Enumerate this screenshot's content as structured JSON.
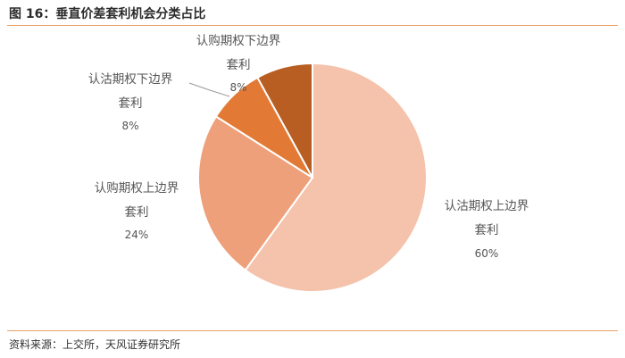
{
  "figure": {
    "title": "图 16：垂直价差套利机会分类占比",
    "source": "资料来源：上交所，天风证券研究所"
  },
  "chart_data": {
    "type": "pie",
    "start_angle_deg": 0,
    "direction": "clockwise",
    "slices": [
      {
        "label_lines": [
          "认沽期权上边界",
          "套利"
        ],
        "percent_label": "60%",
        "value": 60,
        "color": "#f5c2ab"
      },
      {
        "label_lines": [
          "认购期权上边界",
          "套利"
        ],
        "percent_label": "24%",
        "value": 24,
        "color": "#eda07a"
      },
      {
        "label_lines": [
          "认沽期权下边界",
          "套利"
        ],
        "percent_label": "8%",
        "value": 8,
        "color": "#e27a35"
      },
      {
        "label_lines": [
          "认购期权下边界",
          "套利"
        ],
        "percent_label": "8%",
        "value": 8,
        "color": "#b85e22"
      }
    ],
    "slice_border_color": "#ffffff"
  }
}
